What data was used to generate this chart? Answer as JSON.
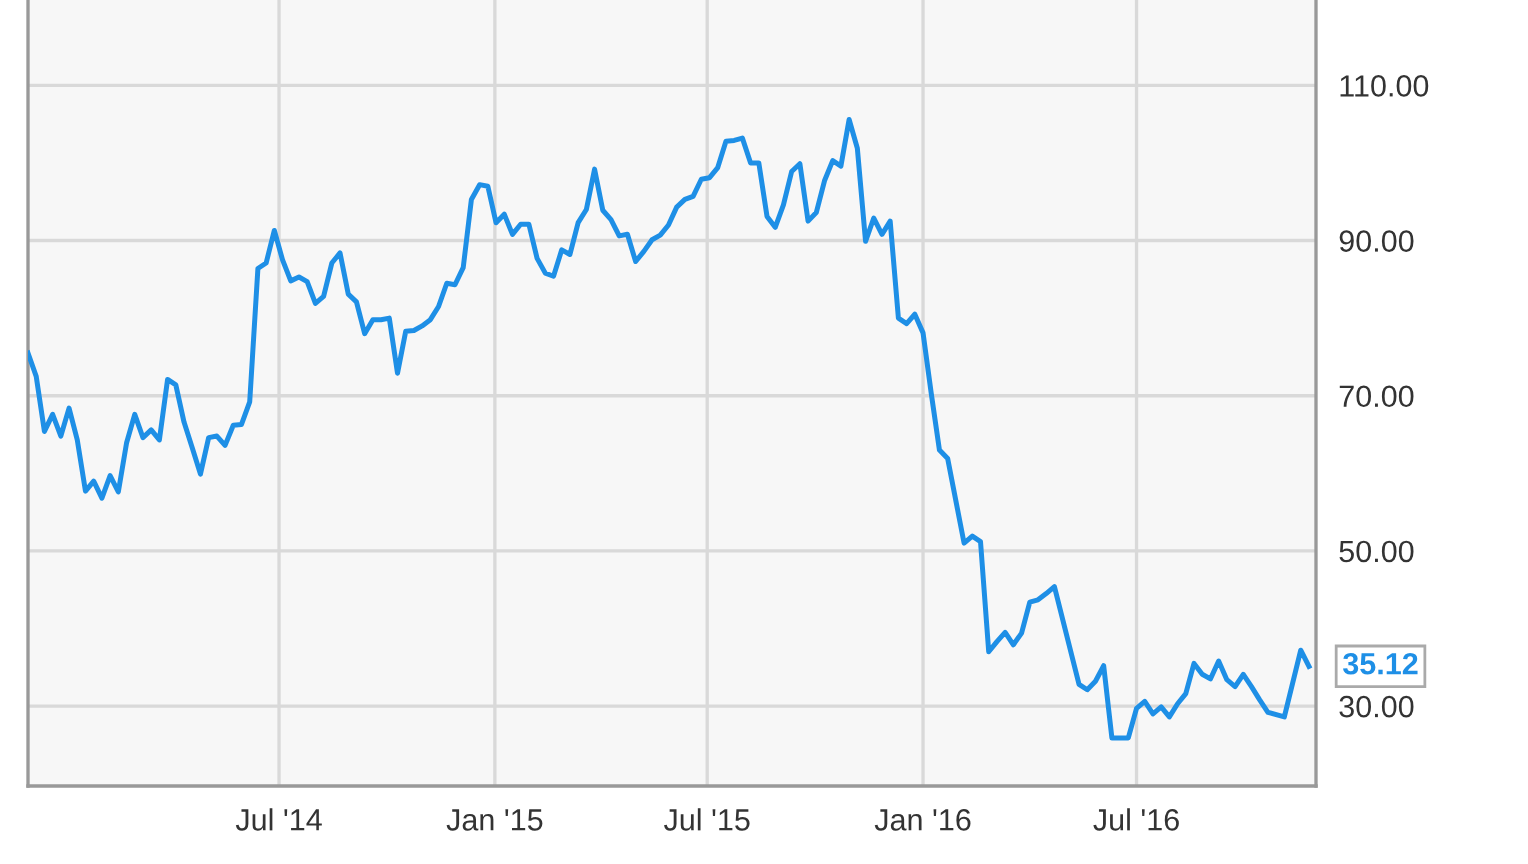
{
  "chart_data": {
    "type": "line",
    "grid": true,
    "marker": "none",
    "line_style": "solid",
    "x": [
      "2013-11-29",
      "2013-12-06",
      "2013-12-13",
      "2013-12-20",
      "2013-12-27",
      "2014-01-03",
      "2014-01-10",
      "2014-01-17",
      "2014-01-24",
      "2014-01-31",
      "2014-02-07",
      "2014-02-14",
      "2014-02-21",
      "2014-02-28",
      "2014-03-07",
      "2014-03-14",
      "2014-03-21",
      "2014-03-28",
      "2014-04-04",
      "2014-04-11",
      "2014-04-18",
      "2014-04-25",
      "2014-05-02",
      "2014-05-09",
      "2014-05-16",
      "2014-05-23",
      "2014-05-30",
      "2014-06-06",
      "2014-06-13",
      "2014-06-20",
      "2014-06-27",
      "2014-07-04",
      "2014-07-11",
      "2014-07-18",
      "2014-07-25",
      "2014-08-01",
      "2014-08-08",
      "2014-08-15",
      "2014-08-22",
      "2014-08-29",
      "2014-09-05",
      "2014-09-12",
      "2014-09-19",
      "2014-09-26",
      "2014-10-03",
      "2014-10-10",
      "2014-10-17",
      "2014-10-24",
      "2014-10-31",
      "2014-11-07",
      "2014-11-14",
      "2014-11-21",
      "2014-11-28",
      "2014-12-05",
      "2014-12-12",
      "2014-12-19",
      "2014-12-26",
      "2015-01-02",
      "2015-01-09",
      "2015-01-16",
      "2015-01-23",
      "2015-01-30",
      "2015-02-06",
      "2015-02-13",
      "2015-02-20",
      "2015-02-27",
      "2015-03-06",
      "2015-03-13",
      "2015-03-20",
      "2015-03-27",
      "2015-04-03",
      "2015-04-10",
      "2015-04-17",
      "2015-04-24",
      "2015-05-01",
      "2015-05-08",
      "2015-05-15",
      "2015-05-22",
      "2015-05-29",
      "2015-06-05",
      "2015-06-12",
      "2015-06-19",
      "2015-06-26",
      "2015-07-03",
      "2015-07-10",
      "2015-07-17",
      "2015-07-24",
      "2015-07-31",
      "2015-08-07",
      "2015-08-14",
      "2015-08-21",
      "2015-08-28",
      "2015-09-04",
      "2015-09-11",
      "2015-09-18",
      "2015-09-25",
      "2015-10-02",
      "2015-10-09",
      "2015-10-16",
      "2015-10-23",
      "2015-10-30",
      "2015-11-06",
      "2015-11-13",
      "2015-11-20",
      "2015-11-27",
      "2015-12-04",
      "2015-12-11",
      "2015-12-18",
      "2015-12-25",
      "2016-01-01",
      "2016-01-08",
      "2016-01-15",
      "2016-01-22",
      "2016-02-05",
      "2016-02-12",
      "2016-02-19",
      "2016-02-26",
      "2016-03-04",
      "2016-03-11",
      "2016-03-18",
      "2016-03-25",
      "2016-04-01",
      "2016-04-08",
      "2016-04-15",
      "2016-04-22",
      "2016-05-13",
      "2016-05-20",
      "2016-05-27",
      "2016-06-03",
      "2016-06-10",
      "2016-06-17",
      "2016-06-24",
      "2016-07-01",
      "2016-07-08",
      "2016-07-15",
      "2016-07-22",
      "2016-07-29",
      "2016-08-05",
      "2016-08-12",
      "2016-08-19",
      "2016-08-26",
      "2016-09-02",
      "2016-09-09",
      "2016-09-16",
      "2016-09-23",
      "2016-09-30",
      "2016-10-07",
      "2016-10-14",
      "2016-10-21",
      "2016-11-04",
      "2016-11-18",
      "2016-11-25"
    ],
    "series": [
      {
        "color": "#1e8fe6",
        "values": [
          75.5,
          72.5,
          65.4,
          67.6,
          64.8,
          68.4,
          64.3,
          57.7,
          59,
          56.8,
          59.7,
          57.6,
          63.9,
          67.6,
          64.6,
          65.6,
          64.3,
          72.1,
          71.4,
          66.6,
          63.3,
          59.9,
          64.6,
          64.8,
          63.6,
          66.2,
          66.3,
          69.2,
          86.4,
          87.1,
          91.3,
          87.5,
          84.8,
          85.3,
          84.7,
          81.9,
          82.8,
          87.1,
          88.4,
          83.1,
          82.1,
          78,
          79.8,
          79.8,
          80,
          72.9,
          78.3,
          78.4,
          79,
          79.8,
          81.5,
          84.5,
          84.3,
          86.5,
          95.3,
          97.2,
          97,
          92.3,
          93.4,
          90.8,
          92.1,
          92.1,
          87.7,
          85.8,
          85.4,
          88.8,
          88.2,
          92.3,
          94,
          99.2,
          93.9,
          92.7,
          90.6,
          90.8,
          87.3,
          88.6,
          90.1,
          90.7,
          92,
          94.3,
          95.3,
          95.7,
          97.9,
          98.1,
          99.4,
          102.8,
          102.9,
          103.2,
          100,
          100,
          93.1,
          91.7,
          94.6,
          98.9,
          99.9,
          92.5,
          93.6,
          97.7,
          100.3,
          99.6,
          105.6,
          101.9,
          89.9,
          92.9,
          90.8,
          92.5,
          80,
          79.3,
          80.5,
          78.1,
          70.3,
          63,
          61.9,
          51,
          51.9,
          51.2,
          37,
          38.3,
          39.5,
          37.9,
          39.4,
          43.4,
          43.7,
          44.5,
          45.4,
          32.8,
          32.1,
          33.2,
          35.2,
          25.9,
          25.9,
          25.9,
          29.7,
          30.6,
          29,
          29.9,
          28.6,
          30.3,
          31.6,
          35.5,
          34.1,
          33.5,
          35.8,
          33.4,
          32.5,
          34.1,
          32.5,
          30.8,
          29.2,
          28.6,
          37.2,
          35.12
        ]
      }
    ],
    "xlim": [
      "2013-11-29",
      "2016-12-01"
    ],
    "xticks": [
      {
        "value": "2014-07-01",
        "label": "Jul '14"
      },
      {
        "value": "2015-01-01",
        "label": "Jan '15"
      },
      {
        "value": "2015-07-01",
        "label": "Jul '15"
      },
      {
        "value": "2016-01-01",
        "label": "Jan '16"
      },
      {
        "value": "2016-07-01",
        "label": "Jul '16"
      }
    ],
    "ylim": [
      19.7,
      121
    ],
    "yticks": [
      {
        "value": 30,
        "label": "30.00"
      },
      {
        "value": 50,
        "label": "50.00"
      },
      {
        "value": 70,
        "label": "70.00"
      },
      {
        "value": 90,
        "label": "90.00"
      },
      {
        "value": 110,
        "label": "110.00"
      }
    ],
    "annotations": [
      {
        "text": "35.12",
        "x": "2016-11-25",
        "y": 35.12
      }
    ]
  }
}
